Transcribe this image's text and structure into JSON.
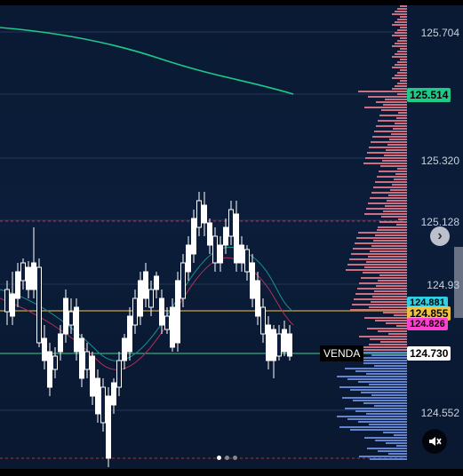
{
  "chart_data": {
    "type": "candlestick",
    "y_ticks": [
      "125.704",
      "125.320",
      "125.128",
      "124.93",
      "124.552"
    ],
    "price_tags": [
      {
        "value": "125.514",
        "color": "#1ec98a"
      },
      {
        "value": "124.881",
        "color": "#2fd0e6"
      },
      {
        "value": "124.855",
        "color": "#f0c040"
      },
      {
        "value": "124.826",
        "color": "#ff3fd0"
      },
      {
        "value": "124.730",
        "color": "#ffffff"
      }
    ],
    "annotation": "VENDA",
    "colors": {
      "up": "#ffffff",
      "down": "#ffffff",
      "ma_long": "#1ec98a",
      "volume_sell": "#e07a8a",
      "volume_buy": "#6e8fe0"
    }
  },
  "controls": {
    "next_icon": "chevron-right-icon",
    "mute_icon": "mute-icon",
    "pagination_count": 3,
    "pagination_active": 0
  }
}
